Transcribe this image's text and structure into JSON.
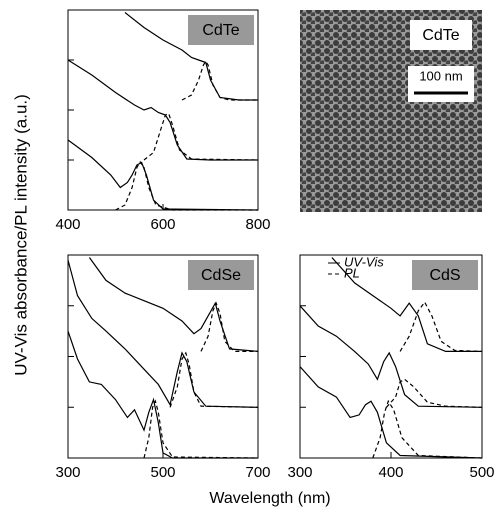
{
  "y_axis_label": "UV-Vis absorbance/PL intensity (a.u.)",
  "x_axis_label": "Wavelength (nm)",
  "image": {
    "label": "CdTe",
    "scale_bar": "100 nm"
  },
  "chart_data": [
    {
      "type": "line",
      "label": "CdTe",
      "xlim": [
        400,
        800
      ],
      "xticks": [
        400,
        600,
        800
      ],
      "ylim": [
        0,
        4
      ],
      "yticks": [
        1,
        2,
        3
      ],
      "color": "#000000",
      "series": [
        {
          "style": "solid",
          "x": [
            520,
            560,
            600,
            640,
            660,
            675,
            690,
            700,
            720,
            760,
            800
          ],
          "values": [
            3.95,
            3.65,
            3.4,
            3.2,
            3.05,
            3.0,
            2.95,
            2.6,
            2.25,
            2.2,
            2.2
          ]
        },
        {
          "style": "dashed",
          "x": [
            640,
            660,
            675,
            685,
            690,
            695,
            705,
            720,
            740,
            800
          ],
          "values": [
            2.2,
            2.3,
            2.6,
            2.9,
            2.97,
            2.9,
            2.5,
            2.25,
            2.2,
            2.2
          ]
        },
        {
          "style": "solid",
          "x": [
            400,
            450,
            500,
            540,
            560,
            575,
            590,
            605,
            615,
            630,
            650,
            700,
            800
          ],
          "values": [
            3.0,
            2.7,
            2.35,
            2.1,
            2.0,
            2.05,
            1.95,
            1.9,
            1.75,
            1.3,
            1.02,
            1.0,
            1.0
          ]
        },
        {
          "style": "dashed",
          "x": [
            560,
            580,
            595,
            605,
            612,
            620,
            635,
            660,
            800
          ],
          "values": [
            1.0,
            1.15,
            1.6,
            1.9,
            1.93,
            1.7,
            1.2,
            1.02,
            1.0
          ]
        },
        {
          "style": "solid",
          "x": [
            400,
            450,
            490,
            510,
            525,
            535,
            545,
            555,
            565,
            580,
            600,
            800
          ],
          "values": [
            1.4,
            1.05,
            0.7,
            0.45,
            0.55,
            0.7,
            0.9,
            0.95,
            0.7,
            0.2,
            0.02,
            0
          ]
        },
        {
          "style": "dashed",
          "x": [
            500,
            520,
            535,
            545,
            552,
            560,
            570,
            585,
            620,
            800
          ],
          "values": [
            0,
            0.1,
            0.45,
            0.85,
            0.96,
            0.85,
            0.45,
            0.1,
            0,
            0
          ]
        }
      ]
    },
    {
      "type": "line",
      "label": "CdSe",
      "xlim": [
        300,
        700
      ],
      "xticks": [
        300,
        500,
        700
      ],
      "ylim": [
        0,
        4
      ],
      "yticks": [
        1,
        2,
        3
      ],
      "color": "#000000",
      "series": [
        {
          "style": "solid",
          "x": [
            345,
            380,
            420,
            460,
            500,
            540,
            565,
            580,
            595,
            610,
            620,
            640,
            700
          ],
          "values": [
            3.95,
            3.5,
            3.25,
            3.1,
            2.95,
            2.7,
            2.45,
            2.55,
            2.8,
            3.05,
            2.7,
            2.15,
            2.1
          ]
        },
        {
          "style": "dashed",
          "x": [
            580,
            595,
            605,
            612,
            620,
            630,
            650,
            700
          ],
          "values": [
            2.1,
            2.4,
            2.9,
            3.05,
            2.85,
            2.3,
            2.1,
            2.1
          ]
        },
        {
          "style": "solid",
          "x": [
            300,
            320,
            350,
            380,
            420,
            460,
            490,
            515,
            530,
            540,
            550,
            565,
            590,
            700
          ],
          "values": [
            3.9,
            3.2,
            2.75,
            2.5,
            2.15,
            1.75,
            1.45,
            1.05,
            1.7,
            2.07,
            1.9,
            1.3,
            1.02,
            1.0
          ]
        },
        {
          "style": "dashed",
          "x": [
            515,
            530,
            540,
            548,
            555,
            565,
            580,
            700
          ],
          "values": [
            1.0,
            1.4,
            1.95,
            2.07,
            1.85,
            1.3,
            1.02,
            1.0
          ]
        },
        {
          "style": "solid",
          "x": [
            300,
            320,
            345,
            370,
            400,
            425,
            440,
            460,
            470,
            480,
            490,
            500,
            520,
            700
          ],
          "values": [
            2.5,
            1.95,
            1.5,
            1.45,
            1.15,
            0.8,
            0.95,
            0.55,
            0.9,
            1.15,
            0.7,
            0.1,
            0.0,
            0
          ]
        },
        {
          "style": "dashed",
          "x": [
            460,
            470,
            478,
            484,
            490,
            500,
            520,
            700
          ],
          "values": [
            0,
            0.4,
            1.0,
            1.12,
            0.9,
            0.3,
            0.02,
            0
          ]
        }
      ]
    },
    {
      "type": "line",
      "label": "CdS",
      "xlim": [
        300,
        500
      ],
      "xticks": [
        300,
        400,
        500
      ],
      "ylim": [
        0,
        4
      ],
      "yticks": [
        1,
        2,
        3
      ],
      "color": "#000000",
      "legend": [
        {
          "label": "UV-Vis",
          "style": "solid"
        },
        {
          "label": "PL",
          "style": "dashed"
        }
      ],
      "series": [
        {
          "style": "solid",
          "x": [
            335,
            360,
            380,
            400,
            410,
            420,
            430,
            440,
            460,
            500
          ],
          "values": [
            3.95,
            3.45,
            3.2,
            2.95,
            2.8,
            3.05,
            2.8,
            2.25,
            2.1,
            2.1
          ]
        },
        {
          "style": "dashed",
          "x": [
            410,
            420,
            430,
            437,
            445,
            455,
            470,
            500
          ],
          "values": [
            2.1,
            2.4,
            2.9,
            3.07,
            2.8,
            2.3,
            2.12,
            2.1
          ]
        },
        {
          "style": "solid",
          "x": [
            300,
            320,
            340,
            360,
            375,
            385,
            392,
            398,
            405,
            415,
            430,
            500
          ],
          "values": [
            3.0,
            2.6,
            2.4,
            2.1,
            1.85,
            1.55,
            1.9,
            2.07,
            1.8,
            1.25,
            1.02,
            1.0
          ]
        },
        {
          "style": "dashed",
          "x": [
            395,
            405,
            410,
            415,
            425,
            440,
            460,
            500
          ],
          "values": [
            1.0,
            1.2,
            1.5,
            1.55,
            1.4,
            1.1,
            1.02,
            1.0
          ]
        },
        {
          "style": "solid",
          "x": [
            300,
            320,
            340,
            355,
            365,
            372,
            378,
            385,
            395,
            410,
            500
          ],
          "values": [
            1.8,
            1.4,
            1.2,
            0.8,
            0.85,
            1.05,
            1.12,
            0.9,
            0.3,
            0.05,
            0
          ]
        },
        {
          "style": "dashed",
          "x": [
            380,
            388,
            393,
            397,
            403,
            412,
            430,
            500
          ],
          "values": [
            0,
            0.4,
            0.9,
            1.12,
            0.95,
            0.4,
            0.05,
            0
          ]
        }
      ]
    }
  ]
}
